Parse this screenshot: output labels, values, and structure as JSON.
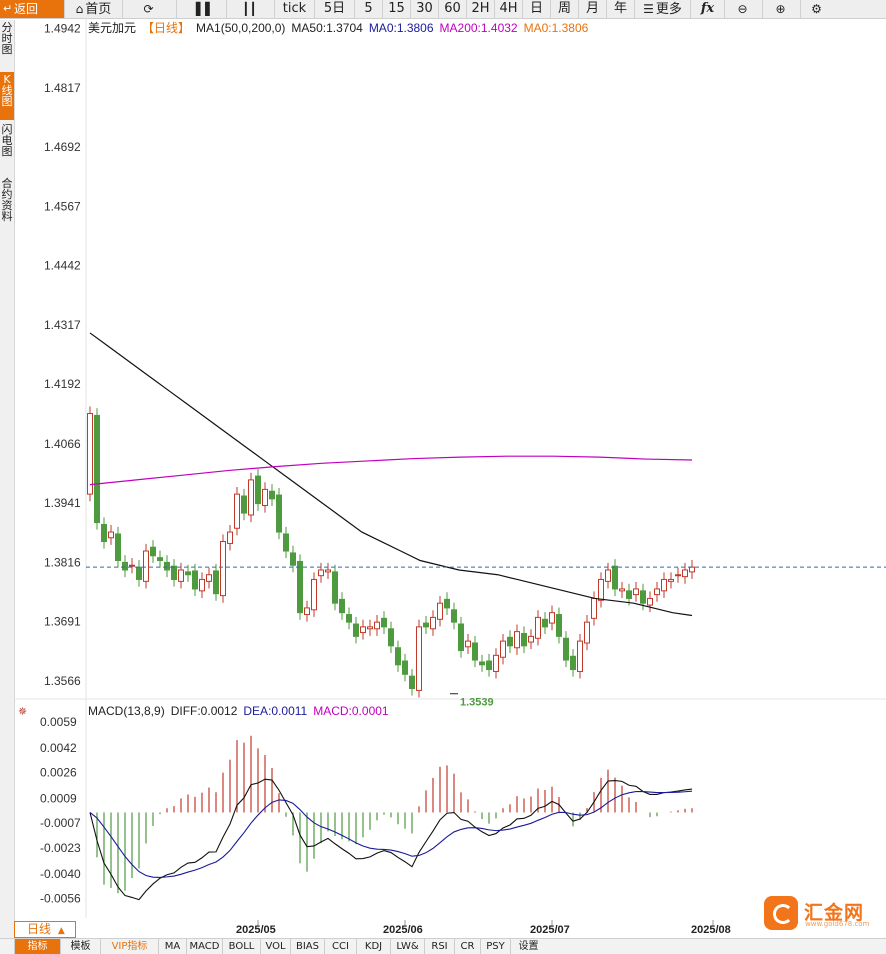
{
  "toolbar": {
    "back_label": "返回",
    "items": [
      {
        "label": "首页",
        "icon": "home-icon"
      },
      {
        "label": "",
        "icon": "refresh-icon"
      },
      {
        "label": "",
        "icon": "bar-chart-icon"
      },
      {
        "label": "",
        "icon": "candlestick-icon"
      },
      {
        "label": "tick",
        "icon": ""
      },
      {
        "label": "5日",
        "icon": ""
      },
      {
        "label": "5",
        "icon": ""
      },
      {
        "label": "15",
        "icon": ""
      },
      {
        "label": "30",
        "icon": ""
      },
      {
        "label": "60",
        "icon": ""
      },
      {
        "label": "2H",
        "icon": ""
      },
      {
        "label": "4H",
        "icon": ""
      },
      {
        "label": "日",
        "icon": ""
      },
      {
        "label": "周",
        "icon": ""
      },
      {
        "label": "月",
        "icon": ""
      },
      {
        "label": "年",
        "icon": ""
      },
      {
        "label": "更多",
        "icon": "menu-icon"
      },
      {
        "label": "fx",
        "icon": "formula-icon"
      },
      {
        "label": "",
        "icon": "zoom-out-icon"
      },
      {
        "label": "",
        "icon": "zoom-in-icon"
      },
      {
        "label": "",
        "icon": "settings-icon"
      }
    ]
  },
  "left_nav": [
    "分时图",
    "K线图",
    "闪电图",
    "合约资料"
  ],
  "legend_main": {
    "symbol": "美元加元",
    "period": "【日线】",
    "ma_label": "MA1(50,0,200,0)",
    "ma50": "MA50:1.3704",
    "ma0a": "MA0:1.3806",
    "ma200": "MA200:1.4032",
    "ma0b": "MA0:1.3806"
  },
  "legend_macd": {
    "label": "MACD(13,8,9)",
    "diff": "DIFF:0.0012",
    "dea": "DEA:0.0011",
    "macd": "MACD:0.0001"
  },
  "colors": {
    "up": "#c0392b",
    "down": "#4e9a3e",
    "ma50": "#111111",
    "ma200": "#c000c0",
    "dea": "#1a1a9c",
    "accent": "#e8720c",
    "last_price": "#2b6cb0"
  },
  "period_select": "日线",
  "bottom_tabs": [
    "指标",
    "模板",
    "VIP指标",
    "MA",
    "MACD",
    "BOLL",
    "VOL",
    "BIAS",
    "CCI",
    "KDJ",
    "LW&",
    "RSI",
    "CR",
    "PSY",
    "设置"
  ],
  "logo": {
    "name": "汇金网",
    "url_text": "www.gold678.com"
  },
  "chart_data": {
    "type": "candlestick",
    "price_axis": {
      "ticks": [
        "1.4942",
        "1.4817",
        "1.4692",
        "1.4567",
        "1.4442",
        "1.4317",
        "1.4192",
        "1.4066",
        "1.3941",
        "1.3816",
        "1.3691",
        "1.3566"
      ],
      "range": [
        1.353,
        1.496
      ]
    },
    "x_labels": [
      {
        "label": "2025/05",
        "index": 24
      },
      {
        "label": "2025/06",
        "index": 45
      },
      {
        "label": "2025/07",
        "index": 66
      },
      {
        "label": "2025/08",
        "index": 89
      }
    ],
    "last_price": 1.3806,
    "low_annotation": {
      "label": "1.3539",
      "value": 1.3539,
      "index": 52
    },
    "closes": [
      1.413,
      1.39,
      1.386,
      1.388,
      1.382,
      1.38,
      1.381,
      1.378,
      1.384,
      1.383,
      1.382,
      1.38,
      1.378,
      1.38,
      1.379,
      1.376,
      1.378,
      1.379,
      1.375,
      1.386,
      1.388,
      1.396,
      1.392,
      1.399,
      1.394,
      1.397,
      1.395,
      1.388,
      1.384,
      1.381,
      1.371,
      1.372,
      1.378,
      1.38,
      1.38,
      1.373,
      1.371,
      1.369,
      1.366,
      1.368,
      1.368,
      1.369,
      1.368,
      1.364,
      1.36,
      1.358,
      1.355,
      1.368,
      1.368,
      1.37,
      1.373,
      1.372,
      1.369,
      1.363,
      1.365,
      1.361,
      1.36,
      1.359,
      1.362,
      1.365,
      1.364,
      1.367,
      1.364,
      1.366,
      1.37,
      1.368,
      1.371,
      1.366,
      1.361,
      1.359,
      1.365,
      1.369,
      1.374,
      1.378,
      1.38,
      1.376,
      1.376,
      1.374,
      1.376,
      1.373,
      1.374,
      1.376,
      1.378,
      1.378,
      1.379,
      1.38,
      1.3806
    ],
    "ma50": [
      1.43,
      1.427,
      1.424,
      1.421,
      1.418,
      1.415,
      1.412,
      1.409,
      1.406,
      1.403,
      1.4,
      1.397,
      1.394,
      1.391,
      1.388,
      1.386,
      1.384,
      1.382,
      1.381,
      1.38,
      1.3795,
      1.379,
      1.378,
      1.377,
      1.376,
      1.375,
      1.374,
      1.3735,
      1.373,
      1.372,
      1.371,
      1.3704
    ],
    "ma200": [
      1.398,
      1.399,
      1.4,
      1.401,
      1.4018,
      1.4025,
      1.403,
      1.4035,
      1.4038,
      1.404,
      1.404,
      1.4038,
      1.4034,
      1.4032
    ],
    "macd": {
      "ticks": [
        "0.0059",
        "0.0042",
        "0.0026",
        "0.0009",
        "-0.0007",
        "-0.0023",
        "-0.0040",
        "-0.0056"
      ],
      "range": [
        -0.007,
        0.0068
      ],
      "diff_last": 0.0012,
      "dea_last": 0.0011,
      "hist_last": 0.0001
    }
  }
}
